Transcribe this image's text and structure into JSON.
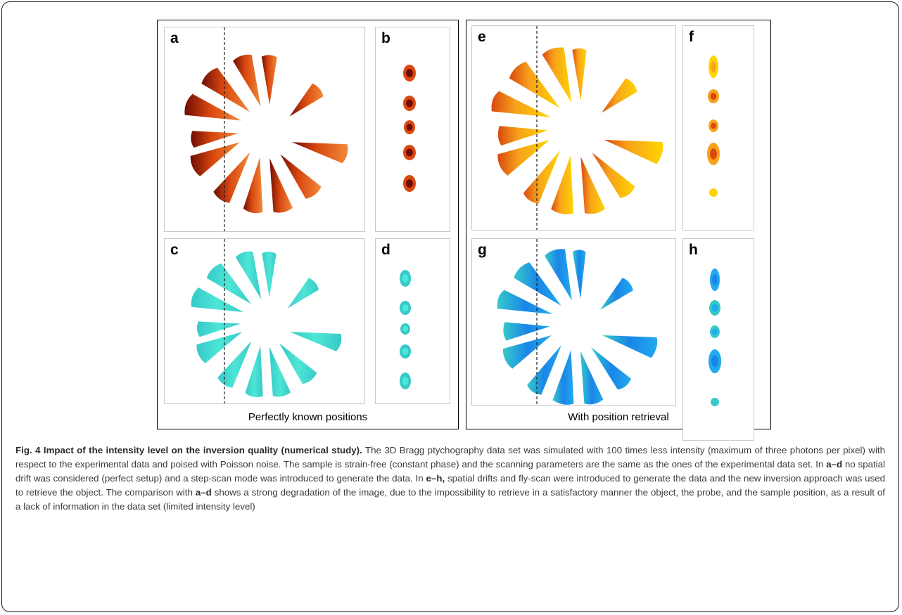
{
  "panels": {
    "a": {
      "letter": "a",
      "colormap": "intensity"
    },
    "b": {
      "letter": "b",
      "colormap": "intensity"
    },
    "c": {
      "letter": "c",
      "colormap": "phase"
    },
    "d": {
      "letter": "d",
      "colormap": "phase"
    },
    "e": {
      "letter": "e",
      "colormap": "intensity"
    },
    "f": {
      "letter": "f",
      "colormap": "intensity"
    },
    "g": {
      "letter": "g",
      "colormap": "phase"
    },
    "h": {
      "letter": "h",
      "colormap": "phase"
    }
  },
  "groups": {
    "left": {
      "caption": "Perfectly known positions"
    },
    "right": {
      "caption": "With position retrieval"
    }
  },
  "colors": {
    "intensity_dark": "#6e0d05",
    "intensity_mid": "#d9480f",
    "intensity_light": "#f08a3a",
    "intensity_yellow": "#ffd400",
    "intensity_orange": "#f7a21b",
    "phase_cyan": "#4ee6d6",
    "phase_teal": "#36c9c9",
    "phase_blue": "#1a86e8",
    "phase_lightblue": "#22a9ee",
    "guide_line": "#1a1a1a"
  },
  "caption": {
    "title": "Fig. 4 Impact of the intensity level on the inversion quality (numerical study).",
    "p1": " The 3D Bragg ptychography data set was simulated with 100 times less intensity (maximum of three photons per pixel) with respect to the experimental data and poised with Poisson noise. The sample is strain-free (constant phase) and the scanning parameters are the same as the ones of the experimental data set. In ",
    "r1": "a–d",
    "p2": " no spatial drift was considered (perfect setup) and a step-scan mode was introduced to generate the data. In ",
    "r2": "e–h,",
    "p3": " spatial drifts and fly-scan were introduced to generate the data and the new inversion approach was used to retrieve the object. The comparison with ",
    "r3": "a–d",
    "p4": " shows a strong degradation of the image, due to the impossibility to retrieve in a satisfactory manner the object, the probe, and the sample position, as a result of a lack of information in the data set (limited intensity level)"
  }
}
